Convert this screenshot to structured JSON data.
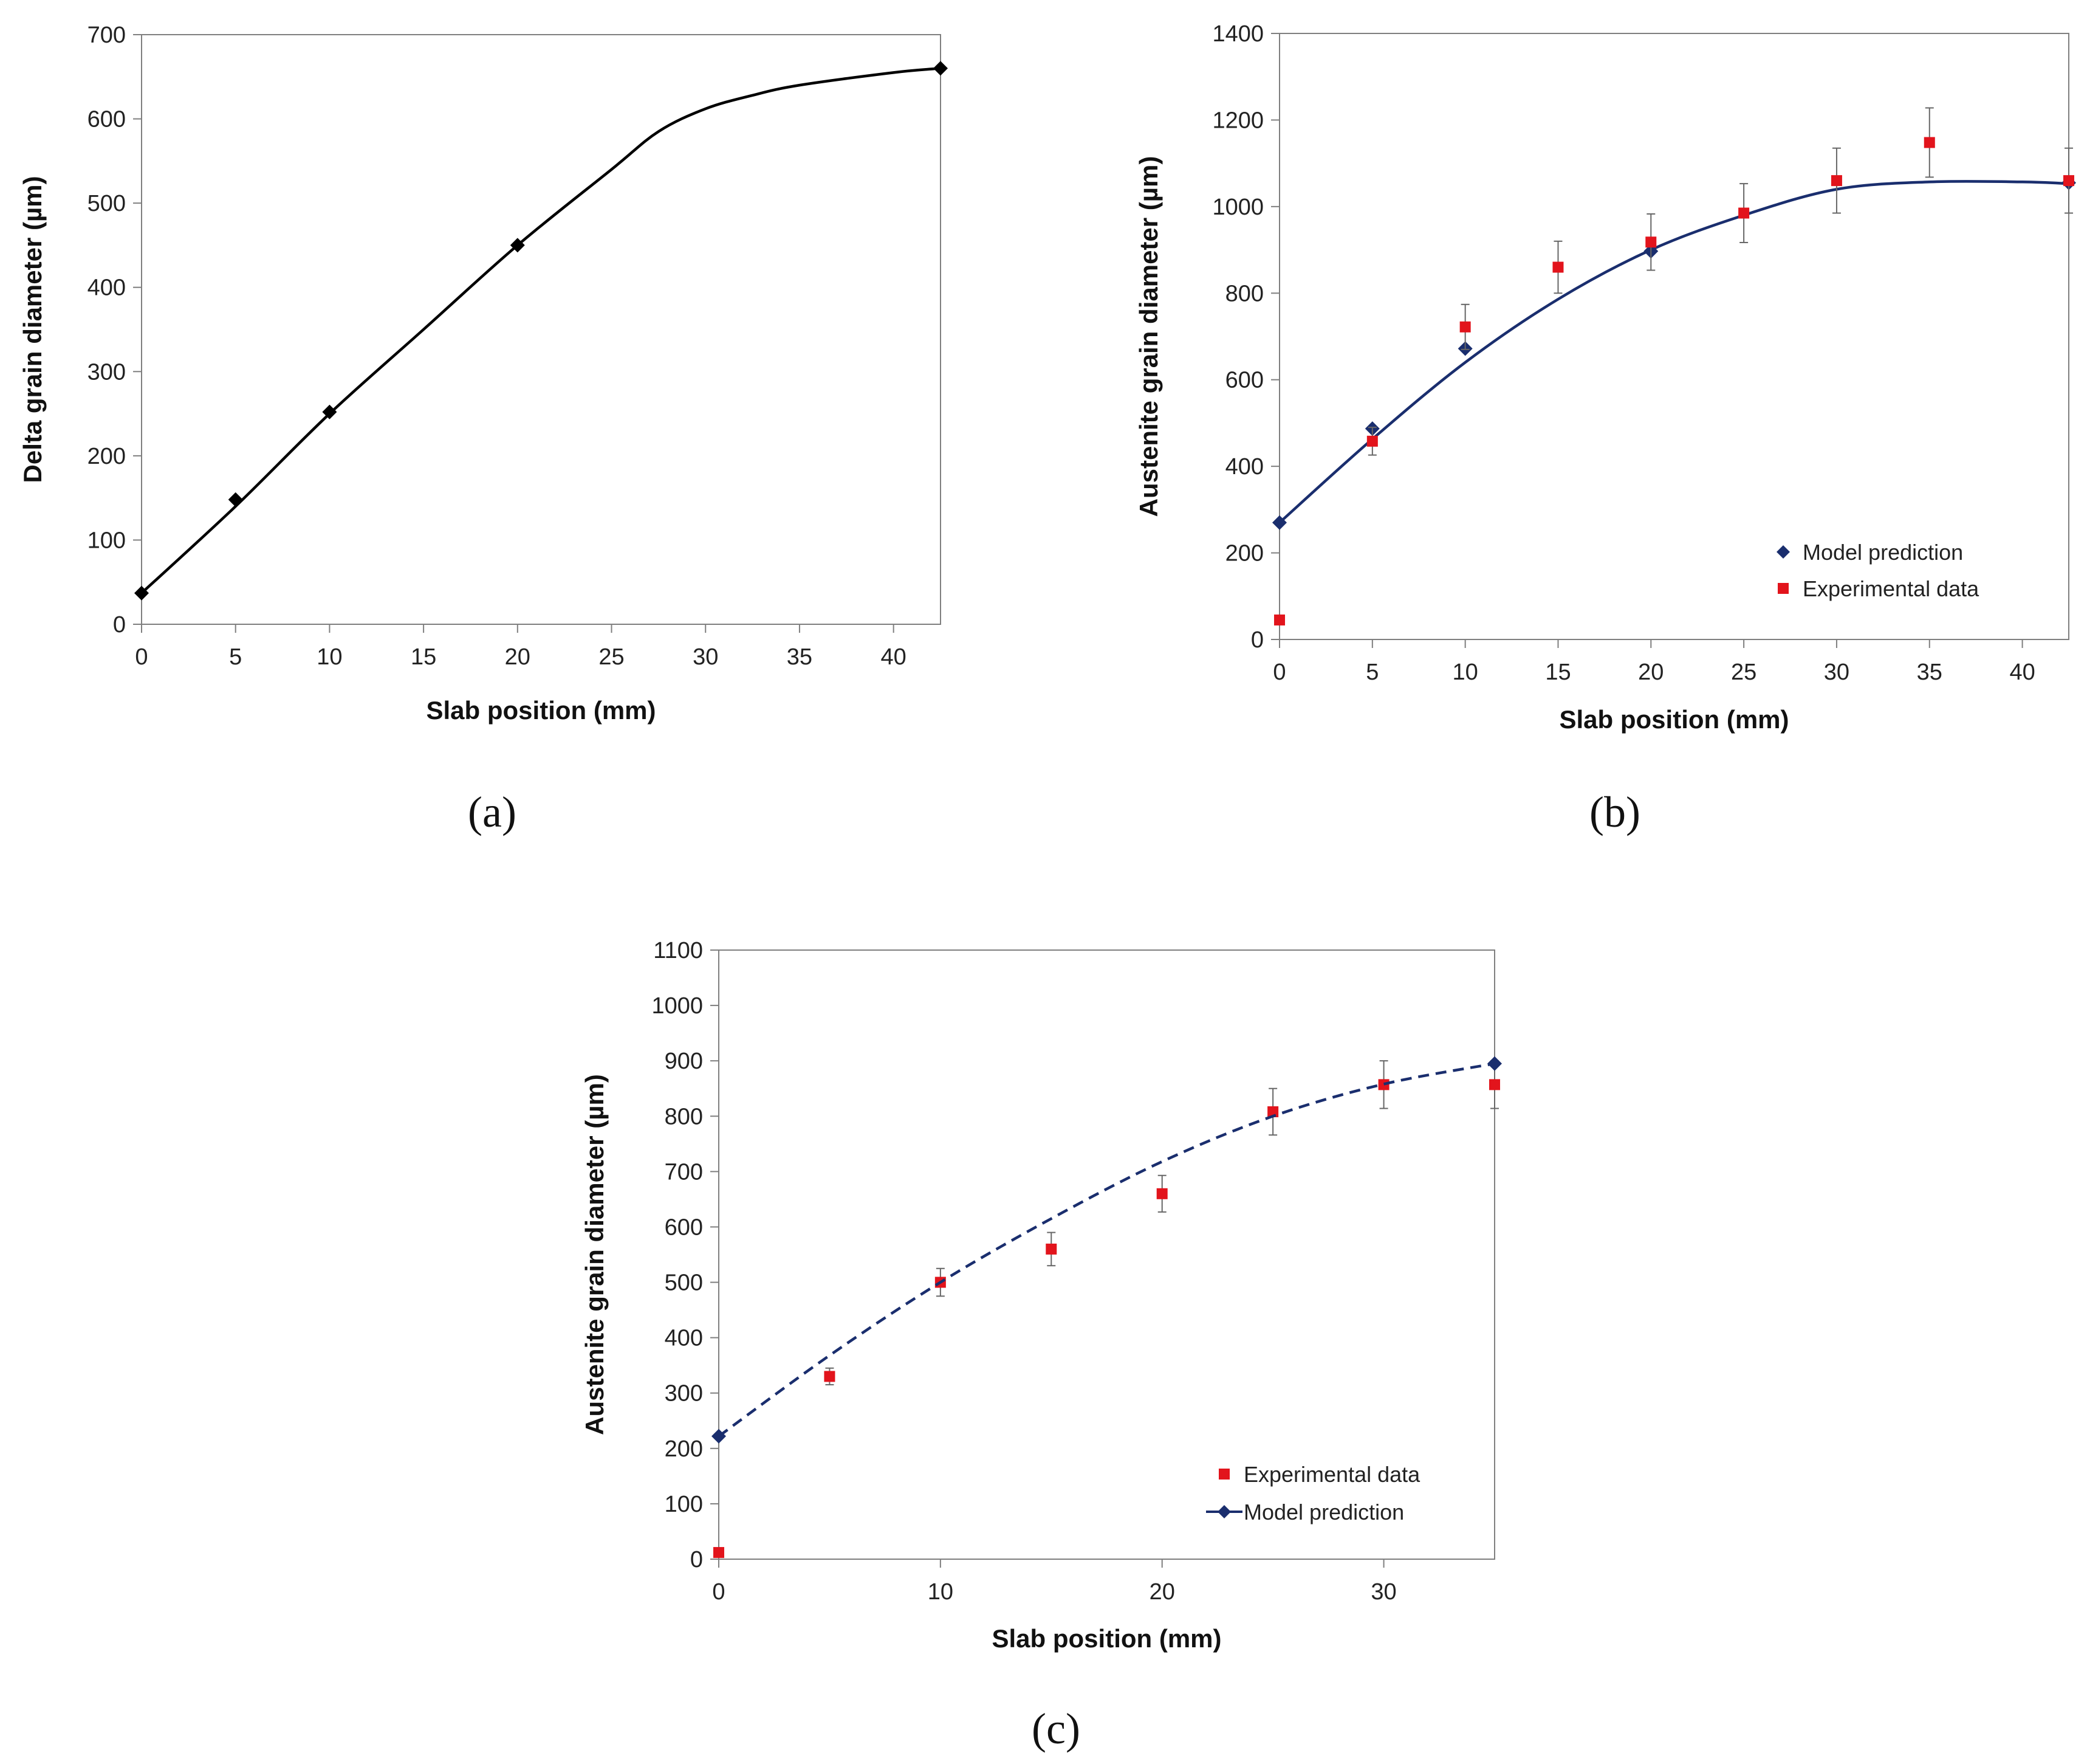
{
  "chart_data": [
    {
      "panel": "(a)",
      "type": "line",
      "xlabel": "Slab position (mm)",
      "ylabel": "Delta grain diameter (µm)",
      "xlim": [
        0,
        42.5
      ],
      "ylim": [
        0,
        700
      ],
      "xticks": [
        0,
        5,
        10,
        15,
        20,
        25,
        30,
        35,
        40
      ],
      "yticks": [
        0,
        100,
        200,
        300,
        400,
        500,
        600,
        700
      ],
      "series": [
        {
          "name": "Delta grain diameter",
          "marker": "diamond",
          "color": "#000000",
          "points": [
            [
              0,
              37
            ],
            [
              5,
              148
            ],
            [
              10,
              252
            ],
            [
              20,
              450
            ],
            [
              42.5,
              660
            ]
          ],
          "curve": [
            [
              0,
              37
            ],
            [
              5,
              140
            ],
            [
              10,
              250
            ],
            [
              15,
              350
            ],
            [
              20,
              450
            ],
            [
              25,
              540
            ],
            [
              27.5,
              585
            ],
            [
              30,
              612
            ],
            [
              32.5,
              628
            ],
            [
              35,
              640
            ],
            [
              40,
              655
            ],
            [
              42.5,
              660
            ]
          ]
        }
      ]
    },
    {
      "panel": "(b)",
      "type": "scatter",
      "xlabel": "Slab position (mm)",
      "ylabel": "Austenite grain diameter (µm)",
      "xlim": [
        0,
        42.5
      ],
      "ylim": [
        0,
        1400
      ],
      "xticks": [
        0,
        5,
        10,
        15,
        20,
        25,
        30,
        35,
        40
      ],
      "yticks": [
        0,
        200,
        400,
        600,
        800,
        1000,
        1200,
        1400
      ],
      "legend_position": "bottom-right",
      "series": [
        {
          "name": "Model prediction",
          "marker": "diamond",
          "color": "#1a2e6e",
          "points": [
            [
              0,
              270
            ],
            [
              5,
              487
            ],
            [
              10,
              672
            ],
            [
              20,
              897
            ],
            [
              42.5,
              1055
            ]
          ],
          "curve": [
            [
              0,
              270
            ],
            [
              5,
              463
            ],
            [
              10,
              640
            ],
            [
              15,
              786
            ],
            [
              20,
              900
            ],
            [
              25,
              980
            ],
            [
              30,
              1040
            ],
            [
              35,
              1057
            ],
            [
              40,
              1057
            ],
            [
              42.5,
              1053
            ]
          ]
        },
        {
          "name": "Experimental data",
          "marker": "square",
          "color": "#e2141c",
          "points": [
            [
              0,
              45,
              0
            ],
            [
              5,
              458,
              32
            ],
            [
              10,
              722,
              52
            ],
            [
              15,
              860,
              60
            ],
            [
              20,
              918,
              65
            ],
            [
              25,
              985,
              68
            ],
            [
              30,
              1060,
              75
            ],
            [
              35,
              1148,
              80
            ],
            [
              42.5,
              1060,
              75
            ]
          ]
        }
      ]
    },
    {
      "panel": "(c)",
      "type": "scatter",
      "xlabel": "Slab position (mm)",
      "ylabel": "Austenite grain diameter (µm)",
      "xlim": [
        0,
        35
      ],
      "ylim": [
        0,
        1100
      ],
      "xticks": [
        0,
        10,
        20,
        30
      ],
      "yticks": [
        0,
        100,
        200,
        300,
        400,
        500,
        600,
        700,
        800,
        900,
        1000,
        1100
      ],
      "legend_position": "bottom-right",
      "series": [
        {
          "name": "Experimental data",
          "marker": "square",
          "color": "#e2141c",
          "points": [
            [
              0,
              12,
              0
            ],
            [
              5,
              330,
              15
            ],
            [
              10,
              500,
              25
            ],
            [
              15,
              560,
              30
            ],
            [
              20,
              660,
              33
            ],
            [
              25,
              808,
              42
            ],
            [
              30,
              857,
              43
            ],
            [
              35,
              857,
              43
            ]
          ]
        },
        {
          "name": "Model prediction",
          "marker": "diamond",
          "line": "dashed",
          "color": "#1a2e6e",
          "points": [
            [
              0,
              222
            ],
            [
              35,
              895
            ]
          ],
          "curve": [
            [
              0,
              222
            ],
            [
              5,
              368
            ],
            [
              10,
              500
            ],
            [
              15,
              615
            ],
            [
              20,
              718
            ],
            [
              25,
              800
            ],
            [
              30,
              858
            ],
            [
              35,
              895
            ]
          ]
        }
      ]
    }
  ]
}
